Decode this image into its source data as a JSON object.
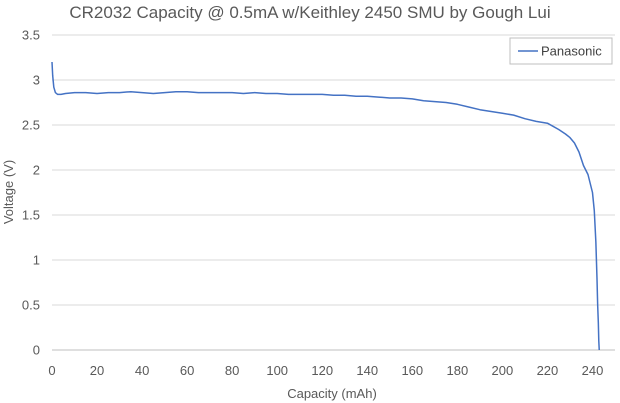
{
  "chart_data": {
    "type": "line",
    "title": "CR2032 Capacity @ 0.5mA w/Keithley 2450 SMU by Gough Lui",
    "xlabel": "Capacity (mAh)",
    "ylabel": "Voltage (V)",
    "xlim": [
      0,
      250
    ],
    "ylim": [
      0,
      3.5
    ],
    "xticks": [
      "0",
      "20",
      "40",
      "60",
      "80",
      "100",
      "120",
      "140",
      "160",
      "180",
      "200",
      "220",
      "240"
    ],
    "yticks": [
      "0",
      "0.5",
      "1",
      "1.5",
      "2",
      "2.5",
      "3",
      "3.5"
    ],
    "grid": "horizontal",
    "legend": "top-right",
    "series": [
      {
        "name": "Panasonic",
        "color": "#4472C4",
        "x": [
          0,
          0.3,
          0.8,
          1.5,
          2.5,
          4,
          6,
          10,
          15,
          20,
          25,
          30,
          35,
          40,
          45,
          50,
          55,
          60,
          65,
          70,
          75,
          80,
          85,
          90,
          95,
          100,
          105,
          110,
          115,
          120,
          125,
          130,
          135,
          140,
          145,
          150,
          155,
          160,
          165,
          170,
          175,
          180,
          185,
          190,
          195,
          200,
          205,
          210,
          215,
          220,
          225,
          228,
          230,
          232,
          234,
          236,
          238,
          239,
          240,
          240.8,
          241.5,
          242,
          242.3,
          242.6,
          242.8,
          243
        ],
        "y": [
          3.2,
          3.05,
          2.92,
          2.86,
          2.84,
          2.84,
          2.85,
          2.86,
          2.86,
          2.85,
          2.86,
          2.86,
          2.87,
          2.86,
          2.85,
          2.86,
          2.87,
          2.87,
          2.86,
          2.86,
          2.86,
          2.86,
          2.85,
          2.86,
          2.85,
          2.85,
          2.84,
          2.84,
          2.84,
          2.84,
          2.83,
          2.83,
          2.82,
          2.82,
          2.81,
          2.8,
          2.8,
          2.79,
          2.77,
          2.76,
          2.75,
          2.73,
          2.7,
          2.67,
          2.65,
          2.63,
          2.61,
          2.57,
          2.54,
          2.52,
          2.45,
          2.4,
          2.36,
          2.3,
          2.2,
          2.05,
          1.95,
          1.85,
          1.75,
          1.55,
          1.2,
          0.8,
          0.5,
          0.3,
          0.1,
          0.0
        ]
      }
    ]
  }
}
